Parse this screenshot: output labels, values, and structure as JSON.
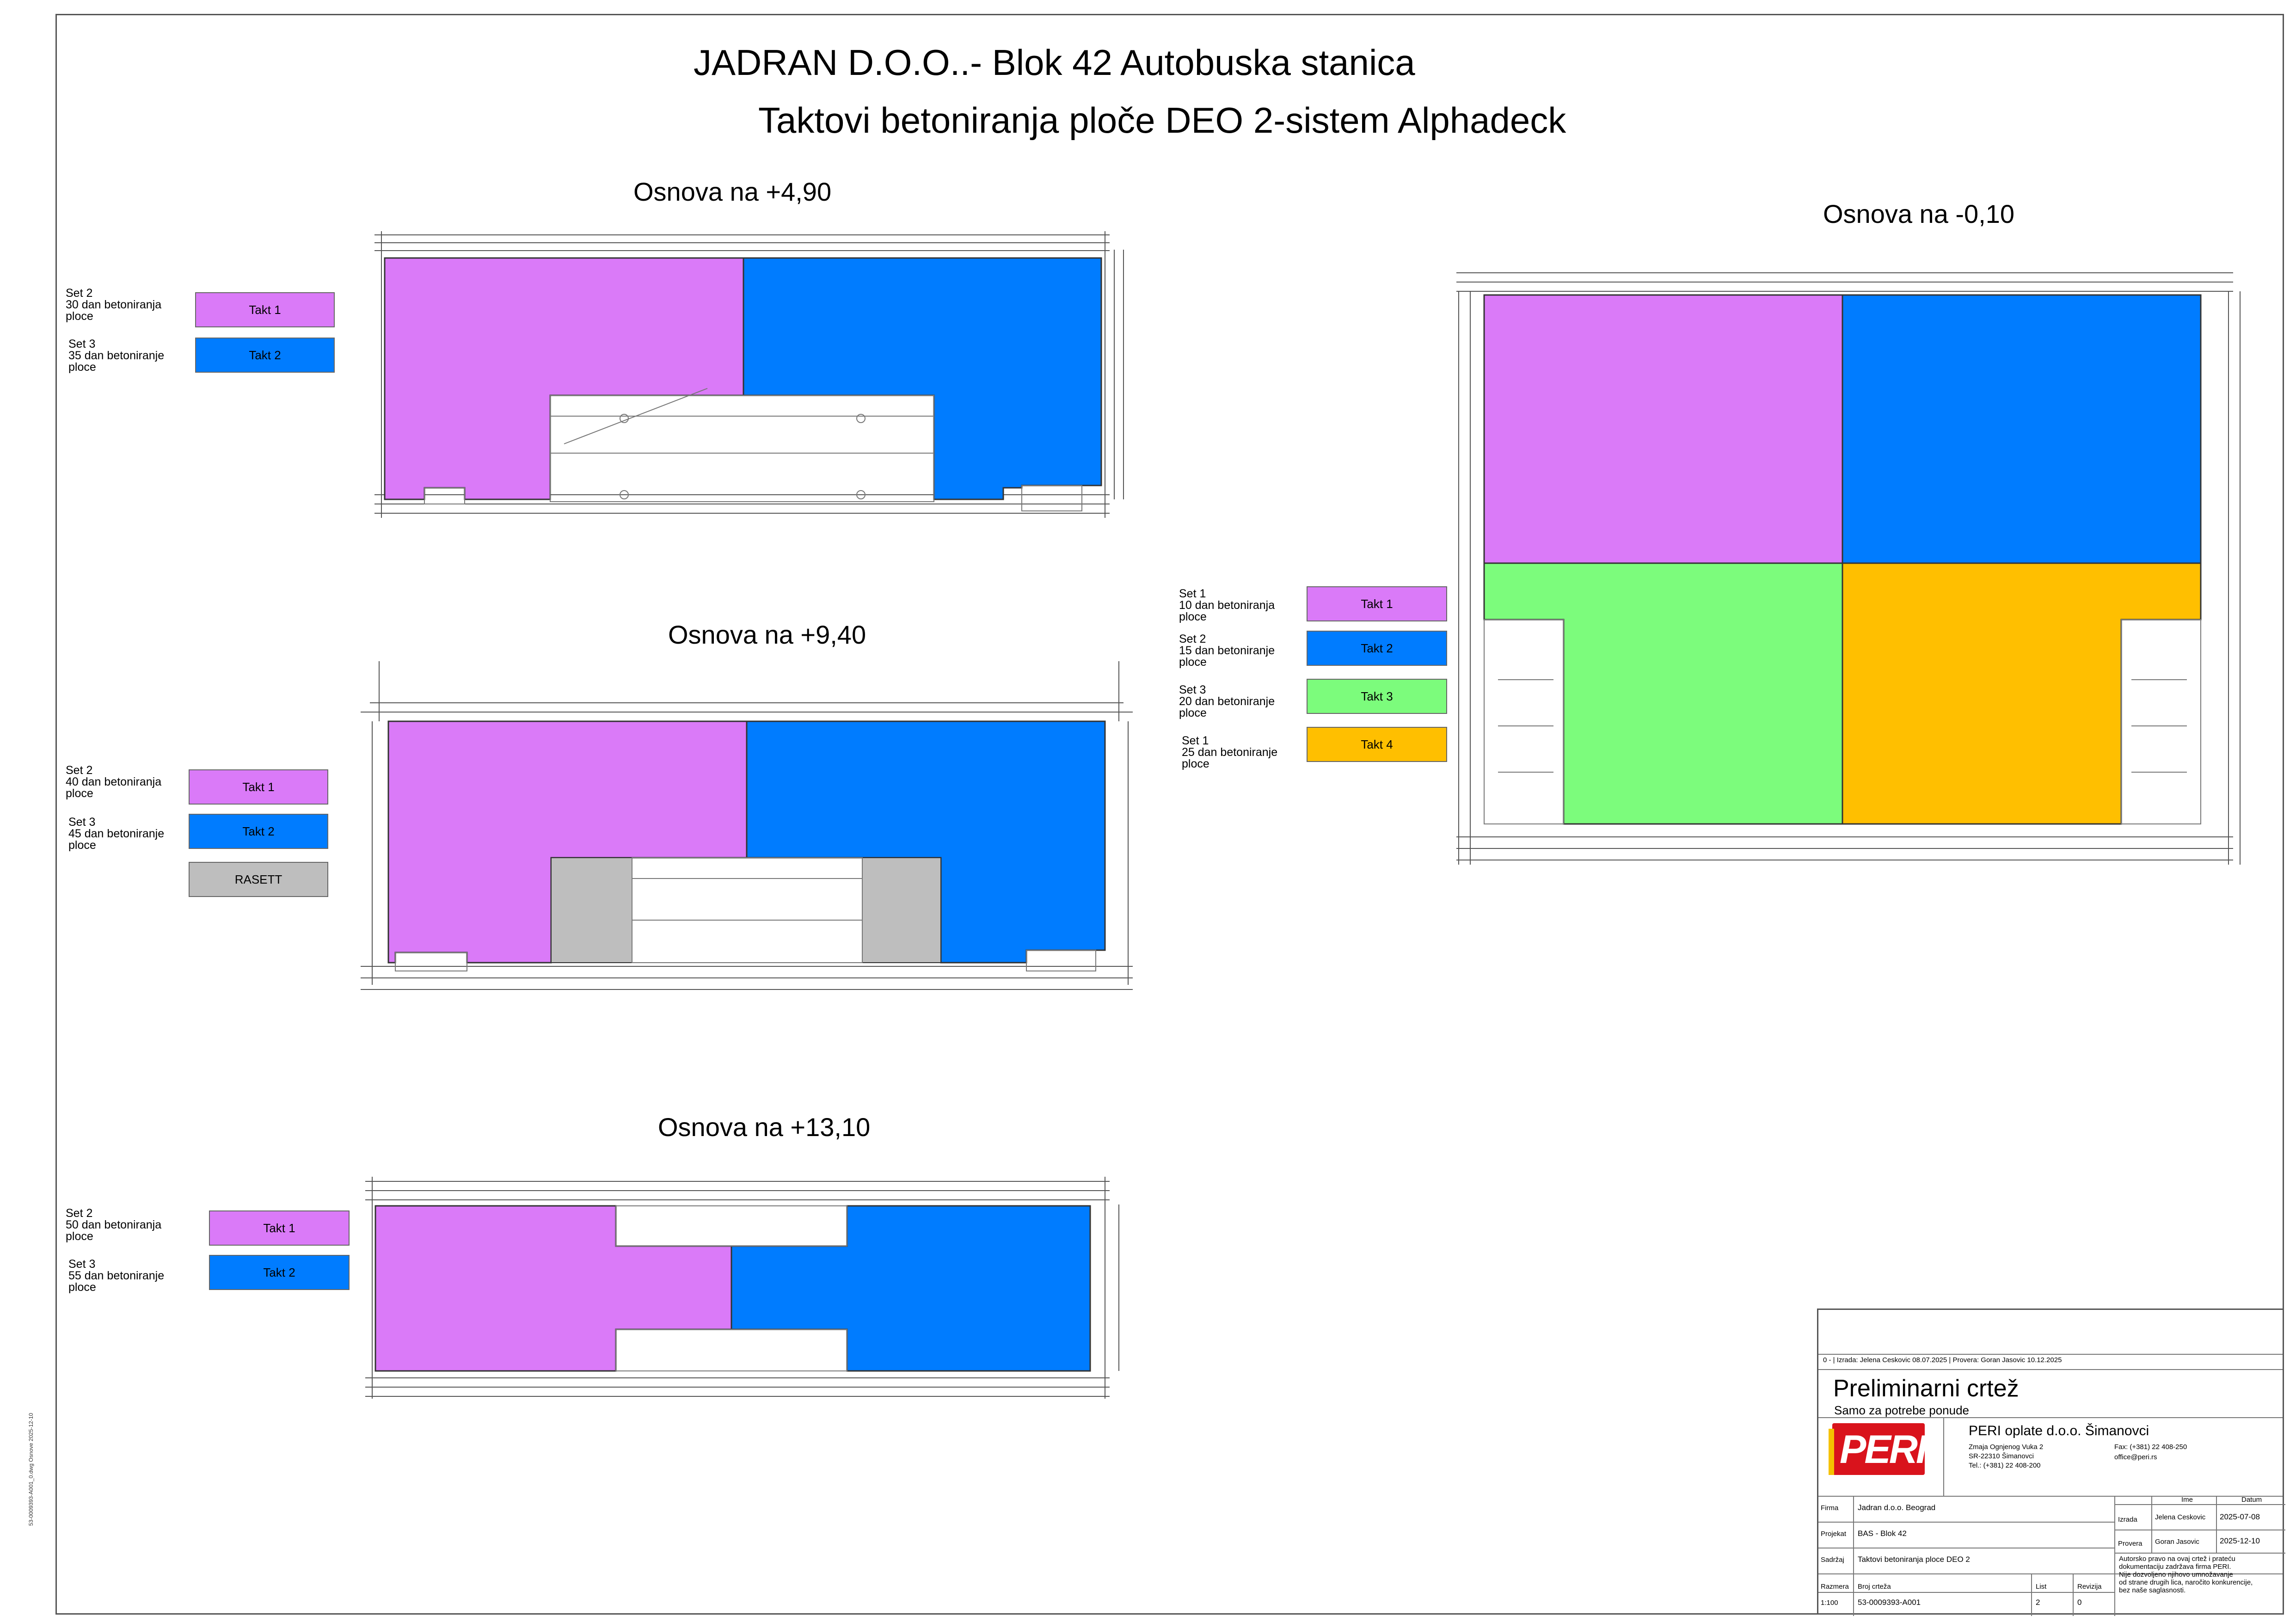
{
  "title": {
    "line1": "JADRAN D.O.O..- Blok 42 Autobuska stanica",
    "line2": "Taktovi betoniranja ploče DEO 2-sistem Alphadeck"
  },
  "colors": {
    "takt1": "#DA7AF8",
    "takt2": "#007CFF",
    "takt3": "#7CFC7C",
    "takt4": "#FFBF00",
    "rasett": "#BEBEBE"
  },
  "plans": {
    "p490": {
      "title": "Osnova na +4,90",
      "legend": [
        {
          "set": "Set 2",
          "line2": "30 dan betoniranja",
          "line3": "ploce",
          "takt": "Takt 1"
        },
        {
          "set": "Set 3",
          "line2": "35 dan betoniranje",
          "line3": "ploce",
          "takt": "Takt 2"
        }
      ]
    },
    "p940": {
      "title": "Osnova na +9,40",
      "legend": [
        {
          "set": "Set 2",
          "line2": "40 dan betoniranja",
          "line3": "ploce",
          "takt": "Takt 1"
        },
        {
          "set": "Set 3",
          "line2": "45 dan betoniranje",
          "line3": "ploce",
          "takt": "Takt 2"
        }
      ],
      "rasett": "RASETT"
    },
    "p1310": {
      "title": "Osnova na +13,10",
      "legend": [
        {
          "set": "Set 2",
          "line2": "50 dan betoniranja",
          "line3": "ploce",
          "takt": "Takt 1"
        },
        {
          "set": "Set 3",
          "line2": "55 dan betoniranje",
          "line3": "ploce",
          "takt": "Takt 2"
        }
      ]
    },
    "p010": {
      "title": "Osnova na -0,10",
      "legend": [
        {
          "set": "Set 1",
          "line2": "10 dan betoniranja",
          "line3": "ploce",
          "takt": "Takt 1"
        },
        {
          "set": "Set 2",
          "line2": "15 dan betoniranje",
          "line3": "ploce",
          "takt": "Takt 2"
        },
        {
          "set": "Set 3",
          "line2": "20 dan betoniranje",
          "line3": "ploce",
          "takt": "Takt 3"
        },
        {
          "set": "Set 1",
          "line2": "25 dan betoniranje",
          "line3": "ploce",
          "takt": "Takt 4"
        }
      ]
    }
  },
  "titleblock": {
    "revision_line": "0 - | Izrada: Jelena Ceskovic 08.07.2025 | Provera: Goran Jasovic 10.12.2025",
    "prelim": "Preliminarni crtež",
    "prelim_sub": "Samo za potrebe ponude",
    "logo_text": "PERI",
    "company": "PERI oplate d.o.o. Šimanovci",
    "addr1": "Zmaja Ognjenog Vuka 2",
    "addr2": "SR-22310 Šimanovci",
    "addr3": "Tel.: (+381) 22 408-200",
    "fax": "Fax: (+381) 22 408-250",
    "email": "office@peri.rs",
    "firma_label": "Firma",
    "firma": "Jadran d.o.o. Beograd",
    "projekat_label": "Projekat",
    "projekat": "BAS - Blok 42",
    "sadrzaj_label": "Sadržaj",
    "sadrzaj": "Taktovi betoniranja ploce DEO 2",
    "ime_label": "Ime",
    "datum_label": "Datum",
    "izrada_label": "Izrada",
    "izrada_ime": "Jelena Ceskovic",
    "izrada_datum": "2025-07-08",
    "provera_label": "Provera",
    "provera_ime": "Goran Jasovic",
    "provera_datum": "2025-12-10",
    "copyright": [
      "Autorsko pravo na ovaj crtež i prateću",
      "dokumentaciju zadržava firma PERI.",
      "Nije dozvoljeno njihovo umnožavanje",
      "od strane drugih lica, naročito konkurencije,",
      "bez naše saglasnosti."
    ],
    "razmera_label": "Razmera",
    "razmera": "1:100",
    "broj_label": "Broj crteža",
    "broj": "53-0009393-A001",
    "list_label": "List",
    "list": "2",
    "revizija_label": "Revizija",
    "revizija": "0"
  },
  "side_text": "53-0009393-A001_0.dwg Osnove 2025-12-10"
}
